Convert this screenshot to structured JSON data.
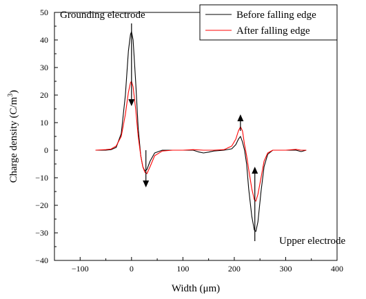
{
  "chart_data": {
    "type": "line",
    "xlabel": "Width (μm)",
    "ylabel": "Charge density (C/m",
    "ylabel_sup": "3",
    "ylabel_tail": ")",
    "xlim": [
      -150,
      400
    ],
    "ylim": [
      -40,
      50
    ],
    "xticks": [
      -100,
      0,
      100,
      200,
      300,
      400
    ],
    "yticks": [
      -40,
      -30,
      -20,
      -10,
      0,
      10,
      20,
      30,
      40,
      50
    ],
    "xtick_labels": [
      "−100",
      "0",
      "100",
      "200",
      "300",
      "400"
    ],
    "ytick_labels": [
      "−40",
      "−30",
      "−20",
      "−10",
      "0",
      "10",
      "20",
      "30",
      "40",
      "50"
    ],
    "grid": false,
    "legend_position": "top-right",
    "series": [
      {
        "name": "Before falling edge",
        "color": "#000000",
        "points": [
          [
            -70,
            0
          ],
          [
            -50,
            0
          ],
          [
            -40,
            0.2
          ],
          [
            -30,
            1
          ],
          [
            -20,
            6
          ],
          [
            -12,
            20
          ],
          [
            -6,
            36
          ],
          [
            -2,
            42
          ],
          [
            0,
            43
          ],
          [
            3,
            40
          ],
          [
            8,
            25
          ],
          [
            13,
            8
          ],
          [
            18,
            -2
          ],
          [
            22,
            -6
          ],
          [
            26,
            -7.5
          ],
          [
            30,
            -7
          ],
          [
            36,
            -4
          ],
          [
            45,
            -1
          ],
          [
            60,
            0
          ],
          [
            80,
            0
          ],
          [
            100,
            0
          ],
          [
            120,
            0
          ],
          [
            130,
            -0.6
          ],
          [
            140,
            -1
          ],
          [
            150,
            -0.7
          ],
          [
            160,
            -0.3
          ],
          [
            180,
            0
          ],
          [
            195,
            0.5
          ],
          [
            203,
            2
          ],
          [
            208,
            4
          ],
          [
            212,
            5
          ],
          [
            216,
            3
          ],
          [
            220,
            0
          ],
          [
            224,
            -5
          ],
          [
            228,
            -14
          ],
          [
            234,
            -24
          ],
          [
            239,
            -29
          ],
          [
            242,
            -29.5
          ],
          [
            246,
            -26
          ],
          [
            252,
            -15
          ],
          [
            258,
            -6
          ],
          [
            265,
            -1.5
          ],
          [
            275,
            0
          ],
          [
            300,
            0
          ],
          [
            320,
            0
          ],
          [
            330,
            -0.5
          ],
          [
            340,
            0
          ]
        ]
      },
      {
        "name": "After falling edge",
        "color": "#ff0000",
        "points": [
          [
            -70,
            0
          ],
          [
            -50,
            0.2
          ],
          [
            -40,
            0.4
          ],
          [
            -30,
            1.5
          ],
          [
            -20,
            5
          ],
          [
            -12,
            13
          ],
          [
            -6,
            21
          ],
          [
            -2,
            24.5
          ],
          [
            0,
            25
          ],
          [
            3,
            23
          ],
          [
            8,
            15
          ],
          [
            13,
            5
          ],
          [
            18,
            -2
          ],
          [
            22,
            -6
          ],
          [
            26,
            -8
          ],
          [
            30,
            -8.5
          ],
          [
            36,
            -6
          ],
          [
            45,
            -2
          ],
          [
            60,
            -0.3
          ],
          [
            80,
            0
          ],
          [
            100,
            0
          ],
          [
            120,
            0.2
          ],
          [
            140,
            0
          ],
          [
            160,
            0
          ],
          [
            180,
            0.2
          ],
          [
            195,
            1.5
          ],
          [
            203,
            4
          ],
          [
            208,
            7
          ],
          [
            212,
            8.5
          ],
          [
            216,
            7
          ],
          [
            220,
            2
          ],
          [
            224,
            -2
          ],
          [
            228,
            -7
          ],
          [
            234,
            -14
          ],
          [
            239,
            -18
          ],
          [
            242,
            -18.5
          ],
          [
            246,
            -16
          ],
          [
            252,
            -10
          ],
          [
            258,
            -4
          ],
          [
            265,
            -1
          ],
          [
            275,
            0
          ],
          [
            300,
            0
          ],
          [
            320,
            0.3
          ],
          [
            330,
            0
          ],
          [
            340,
            0
          ]
        ]
      }
    ],
    "annotations": {
      "grounding": "Grounding electrode",
      "upper": "Upper electrode"
    }
  }
}
